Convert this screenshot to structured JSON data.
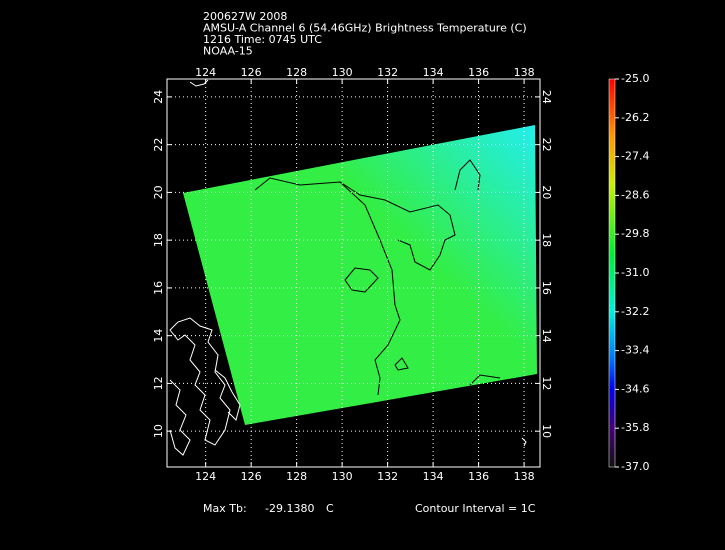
{
  "map": {
    "title_lines": [
      "200627W 2008",
      "AMSU-A Channel 6 (54.46GHz) Brightness Temperature (C)",
      "1216 Time: 0745 UTC",
      "NOAA-15"
    ],
    "xlim": [
      122.3,
      138.7
    ],
    "ylim": [
      8.5,
      24.75
    ],
    "lon_ticks": [
      124,
      126,
      128,
      130,
      132,
      134,
      136,
      138
    ],
    "lat_ticks": [
      10,
      12,
      14,
      16,
      18,
      20,
      22,
      24
    ],
    "colorbar_ticks": [
      {
        "value": -25,
        "label": "-25.0"
      },
      {
        "value": -26.2,
        "label": "-26.2"
      },
      {
        "value": -27.4,
        "label": "-27.4"
      },
      {
        "value": -28.6,
        "label": "-28.6"
      },
      {
        "value": -29.8,
        "label": "-29.8"
      },
      {
        "value": -31,
        "label": "-31.0"
      },
      {
        "value": -32.2,
        "label": "-32.2"
      },
      {
        "value": -33.4,
        "label": "-33.4"
      },
      {
        "value": -34.6,
        "label": "-34.6"
      },
      {
        "value": -35.8,
        "label": "-35.8"
      },
      {
        "value": -37,
        "label": "-37.0"
      }
    ],
    "footer": {
      "max_label": "Max Tb:",
      "max_value": "-29.1380",
      "unit": "C",
      "contour": "Contour Interval = 1C"
    }
  }
}
